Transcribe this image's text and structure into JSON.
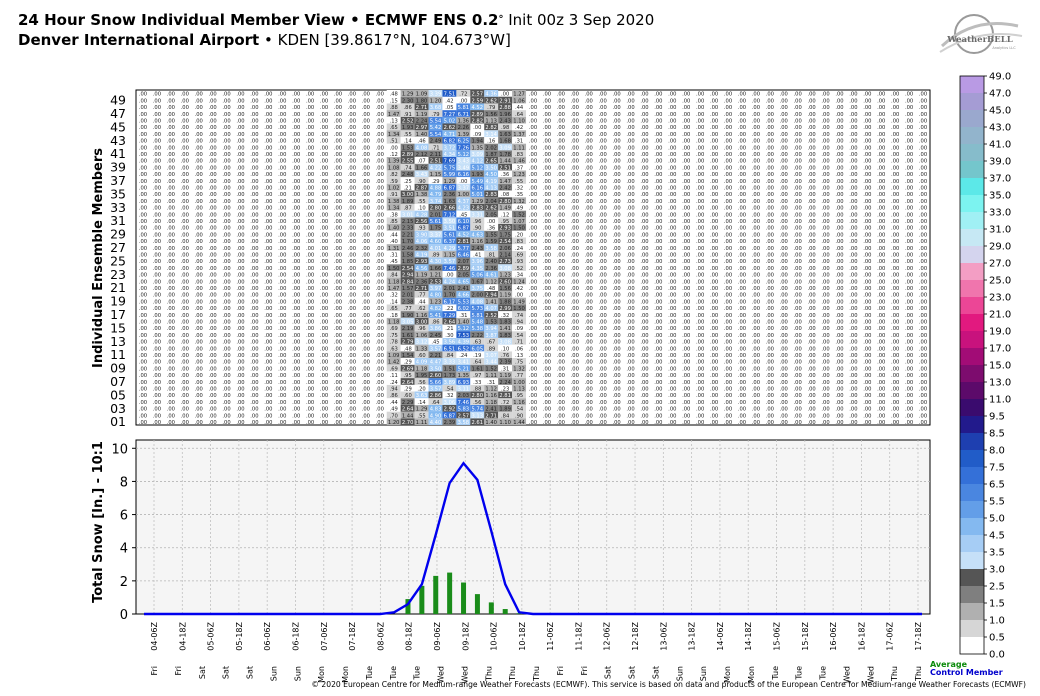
{
  "header": {
    "title_bold": "24 Hour Snow Individual Member View • ECMWF ENS 0.2",
    "title_deg": "°",
    "title_rest": " Init 00z 3 Sep 2020",
    "location_bold": "Denver International Airport",
    "location_rest": " • KDEN [39.8617°N, 104.673°W]"
  },
  "logo": {
    "text": "WeatherBELL",
    "subtext": "Analytics LLC"
  },
  "footer": {
    "legend_average": "Average",
    "legend_control": "Control Member",
    "copyright": "© 2020 European Centre for Medium-range Weather Forecasts (ECMWF). This service is based on data and products of the European Centre for Medium-range Weather Forecasts (ECMWF)"
  },
  "colors": {
    "average_line": "#0000ee",
    "bars": "#1a8c1a",
    "legend_average": "#0a8a0a",
    "legend_control": "#0000cc"
  },
  "chart_data": [
    {
      "type": "heatmap",
      "ylabel": "Individual Ensemble Members",
      "member_ticks": [
        "01",
        "03",
        "05",
        "07",
        "09",
        "11",
        "13",
        "15",
        "17",
        "19",
        "21",
        "23",
        "25",
        "27",
        "29",
        "31",
        "33",
        "35",
        "37",
        "39",
        "41",
        "43",
        "45",
        "47",
        "49"
      ],
      "note": "cell values in inches of snow per 24h period; columns follow the time axis",
      "active_columns": [
        9,
        10,
        11,
        12,
        13,
        14,
        15,
        16,
        17,
        18,
        19,
        20,
        21,
        22,
        23,
        24,
        25
      ],
      "cell_value_format": "two digits"
    },
    {
      "type": "line",
      "ylabel": "Total Snow [In.] - 10:1",
      "ylim": [
        0,
        10.5
      ],
      "yticks": [
        0,
        2,
        4,
        6,
        8,
        10
      ],
      "x_day_labels": [
        "Fri",
        "Fri",
        "Sat",
        "Sat",
        "Sat",
        "Sun",
        "Sun",
        "Mon",
        "Mon",
        "Tue",
        "Tue",
        "Tue",
        "Wed",
        "Wed",
        "Thu",
        "Thu",
        "Thu",
        "Fri",
        "Fri",
        "Sat",
        "Sat",
        "Sat",
        "Sun",
        "Sun",
        "Mon",
        "Mon",
        "Tue",
        "Tue",
        "Tue",
        "Wed",
        "Wed",
        "Thu",
        "Thu"
      ],
      "x_time_labels": [
        "04-06Z",
        "04-18Z",
        "05-06Z",
        "05-18Z",
        "06-06Z",
        "06-18Z",
        "07-06Z",
        "07-18Z",
        "08-06Z",
        "08-18Z",
        "09-06Z",
        "09-18Z",
        "10-06Z",
        "10-18Z",
        "11-06Z",
        "11-18Z",
        "12-06Z",
        "12-18Z",
        "13-06Z",
        "13-18Z",
        "14-06Z",
        "14-18Z",
        "15-06Z",
        "15-18Z",
        "16-06Z",
        "16-18Z",
        "17-06Z",
        "17-18Z"
      ],
      "average": [
        0,
        0,
        0,
        0,
        0,
        0,
        0,
        0,
        0,
        0,
        0,
        0,
        0,
        0,
        0,
        0,
        0,
        0,
        0.1,
        0.6,
        1.8,
        4.8,
        7.9,
        9.1,
        8.1,
        5.0,
        1.8,
        0.1,
        0,
        0,
        0,
        0,
        0,
        0,
        0,
        0,
        0,
        0,
        0,
        0,
        0,
        0,
        0,
        0,
        0,
        0,
        0,
        0,
        0,
        0,
        0,
        0,
        0,
        0,
        0,
        0,
        0
      ],
      "control_bars": [
        0,
        0,
        0,
        0,
        0,
        0,
        0,
        0,
        0,
        0,
        0,
        0,
        0,
        0,
        0,
        0,
        0,
        0,
        0,
        0.9,
        1.7,
        2.3,
        2.5,
        1.9,
        1.2,
        0.7,
        0.3,
        0.05,
        0,
        0,
        0,
        0,
        0,
        0,
        0,
        0,
        0,
        0,
        0,
        0,
        0,
        0,
        0,
        0,
        0,
        0,
        0,
        0,
        0,
        0,
        0,
        0,
        0,
        0,
        0,
        0,
        0
      ]
    },
    {
      "type": "colorbar",
      "labels": [
        "0.0",
        "0.5",
        "1.0",
        "1.5",
        "2.5",
        "3.0",
        "3.5",
        "4.5",
        "5.0",
        "5.5",
        "6.5",
        "7.5",
        "8.0",
        "8.5",
        "9.5",
        "11.0",
        "13.0",
        "15.0",
        "17.0",
        "19.0",
        "21.0",
        "23.0",
        "25.0",
        "27.0",
        "29.0",
        "31.0",
        "33.0",
        "35.0",
        "37.0",
        "39.0",
        "41.0",
        "43.0",
        "45.0",
        "47.0",
        "49.0"
      ],
      "colors": [
        "#ffffff",
        "#d6d6d6",
        "#b0b0b0",
        "#7f7f7f",
        "#555555",
        "#c6e0f8",
        "#a6cdf5",
        "#84b9f0",
        "#639ee8",
        "#4a86e0",
        "#3470d8",
        "#215cc8",
        "#1e3fb0",
        "#221a8c",
        "#3a0b6e",
        "#5c0a6a",
        "#7d0c6e",
        "#a20c76",
        "#c8127d",
        "#e2197f",
        "#ec4696",
        "#f075ad",
        "#f39ec4",
        "#d4d4ee",
        "#c6e8f4",
        "#a0f0f4",
        "#7cf3f0",
        "#5ce8e8",
        "#74c6cc",
        "#86bccb",
        "#92b4cc",
        "#9aa8ce",
        "#a59cd4",
        "#b99ae4",
        "#cc98f0",
        "#dca6f7"
      ]
    }
  ]
}
